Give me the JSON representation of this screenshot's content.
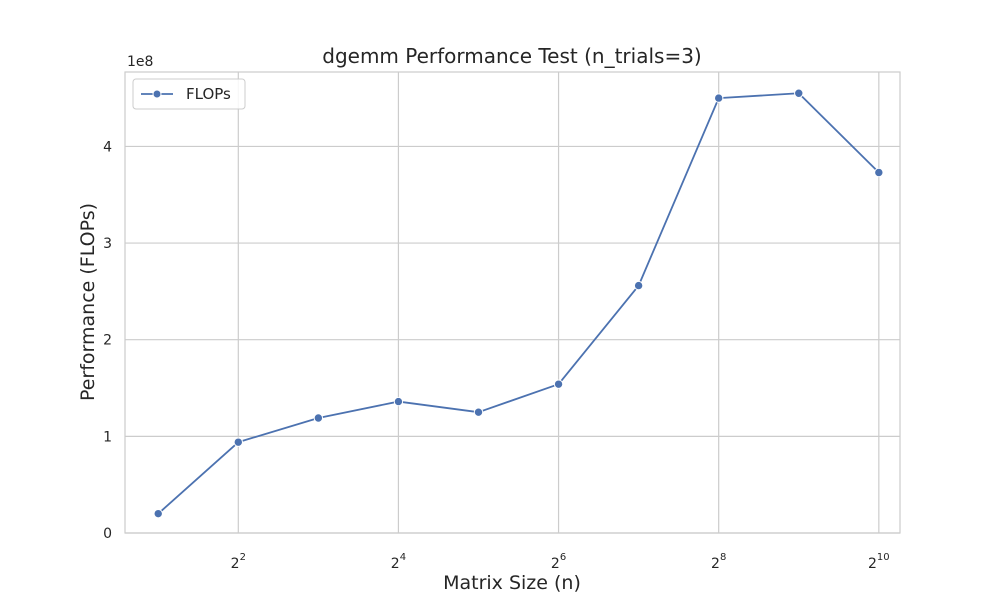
{
  "chart_data": {
    "type": "line",
    "title": "dgemm Performance Test (n_trials=3)",
    "xlabel": "Matrix Size (n)",
    "ylabel": "Performance (FLOPs)",
    "y_offset_label": "1e8",
    "x_scale": "log2",
    "x": [
      2,
      4,
      8,
      16,
      32,
      64,
      128,
      256,
      512,
      1024
    ],
    "x_ticks": [
      4,
      16,
      64,
      256,
      1024
    ],
    "x_tick_labels": [
      {
        "base": "2",
        "exp": "2"
      },
      {
        "base": "2",
        "exp": "4"
      },
      {
        "base": "2",
        "exp": "6"
      },
      {
        "base": "2",
        "exp": "8"
      },
      {
        "base": "2",
        "exp": "10"
      }
    ],
    "xlim": [
      1.5,
      1230
    ],
    "y_ticks": [
      0,
      1,
      2,
      3,
      4
    ],
    "y_tick_labels": [
      "0",
      "1",
      "2",
      "3",
      "4"
    ],
    "ylim": [
      0,
      4.77
    ],
    "series": [
      {
        "name": "FLOPs",
        "color": "#4c72b0",
        "values": [
          0.2,
          0.94,
          1.19,
          1.36,
          1.25,
          1.54,
          2.56,
          4.5,
          4.55,
          3.73
        ]
      }
    ],
    "grid": true,
    "legend": {
      "position": "top-left",
      "label": "FLOPs"
    }
  }
}
